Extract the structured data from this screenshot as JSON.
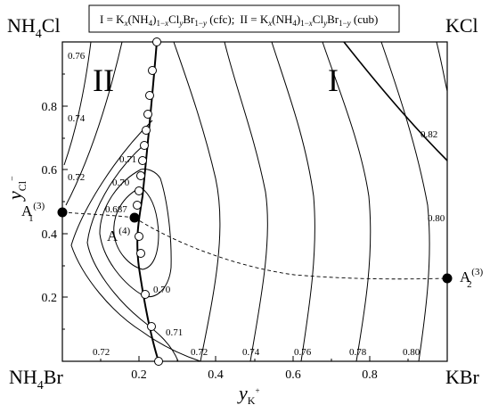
{
  "corners": {
    "top_left": {
      "base": "NH",
      "sub": "4",
      "rest": "Cl"
    },
    "top_right": "KCl",
    "bottom_left": {
      "base": "NH",
      "sub": "4",
      "rest": "Br"
    },
    "bottom_right": "KBr"
  },
  "legend": {
    "one": "I = K",
    "one_formula": "x(NH4)1-xClyBr1-y (cfc)",
    "two": "II = K",
    "two_formula": "x(NH4)1-xClyBr1-y (cub)",
    "sep": ";"
  },
  "regions": {
    "left": "II",
    "right": "I"
  },
  "axes": {
    "xlabel": "y",
    "xlabel_sub": "K",
    "xlabel_sup": "+",
    "ylabel": "y",
    "ylabel_sub": "Cl",
    "ylabel_sup": "−",
    "xticks": [
      "0.2",
      "0.4",
      "0.6",
      "0.8"
    ],
    "yticks": [
      "0.2",
      "0.4",
      "0.6",
      "0.8"
    ],
    "xlim": [
      0,
      1
    ],
    "ylim": [
      0,
      1
    ]
  },
  "contour_labels": [
    "0.76",
    "0.74",
    "0.72",
    "0.71",
    "0.70",
    "0.687",
    "0.70",
    "0.71",
    "0.72",
    "0.72",
    "0.74",
    "0.76",
    "0.78",
    "0.80",
    "0.80",
    "0.82"
  ],
  "points": {
    "A1": {
      "main": "A",
      "sub": "1",
      "sup": "(3)"
    },
    "A4": {
      "main": "A",
      "sup": "(4)"
    },
    "A2": {
      "main": "A",
      "sub": "2",
      "sup": "(3)"
    }
  }
}
